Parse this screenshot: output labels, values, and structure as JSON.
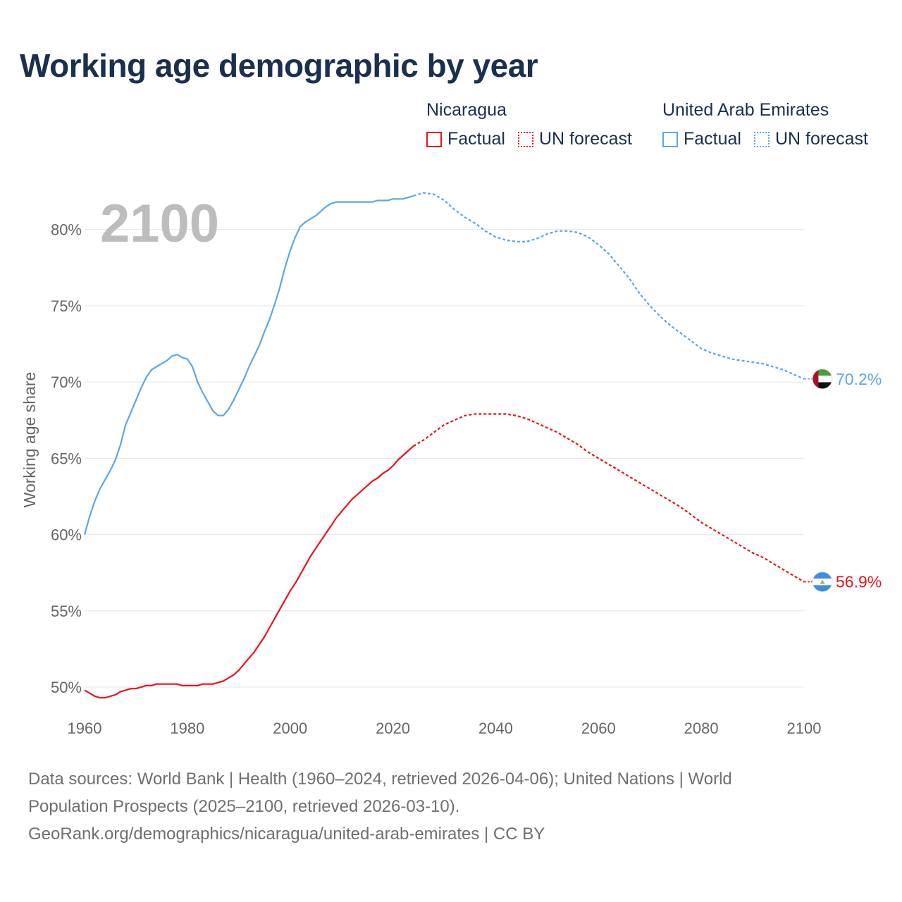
{
  "title": "Working age demographic by year",
  "legend": {
    "nicaragua": {
      "name": "Nicaragua",
      "factual": "Factual",
      "forecast": "UN forecast"
    },
    "uae": {
      "name": "United Arab Emirates",
      "factual": "Factual",
      "forecast": "UN forecast"
    }
  },
  "colors": {
    "nicaragua": "#e8141b",
    "uae": "#5aa7e3",
    "grid": "#e6e6e6",
    "text": "#1b2f4e",
    "muted": "#666666"
  },
  "footer": {
    "line1": "Data sources: World Bank | Health (1960–2024, retrieved 2026-04-06); United Nations | World",
    "line2": "Population Prospects (2025–2100, retrieved 2026-03-10).",
    "line3": "GeoRank.org/demographics/nicaragua/united-arab-emirates | CC BY"
  },
  "chart_data": {
    "type": "line",
    "title": "Working age demographic by year",
    "ylabel": "Working age share",
    "xlabel": "",
    "year_display": "2100",
    "xlim": [
      1960,
      2100
    ],
    "ylim": [
      47,
      84
    ],
    "x_ticks": [
      1960,
      1980,
      2000,
      2020,
      2040,
      2060,
      2080,
      2100
    ],
    "x_tick_labels": [
      "1960",
      "1980",
      "2000",
      "2020",
      "2040",
      "2060",
      "2080",
      "2100"
    ],
    "y_ticks": [
      50,
      55,
      60,
      65,
      70,
      75,
      80
    ],
    "y_tick_labels": [
      "50%",
      "55%",
      "60%",
      "65%",
      "70%",
      "75%",
      "80%"
    ],
    "forecast_start": 2024,
    "series": [
      {
        "name": "Nicaragua",
        "color": "#e8141b",
        "end_label": "56.9%",
        "flag": "nicaragua-flag",
        "points": [
          [
            1960,
            49.8
          ],
          [
            1961,
            49.6
          ],
          [
            1962,
            49.4
          ],
          [
            1963,
            49.3
          ],
          [
            1964,
            49.3
          ],
          [
            1965,
            49.4
          ],
          [
            1966,
            49.5
          ],
          [
            1967,
            49.7
          ],
          [
            1968,
            49.8
          ],
          [
            1969,
            49.9
          ],
          [
            1970,
            49.9
          ],
          [
            1971,
            50.0
          ],
          [
            1972,
            50.1
          ],
          [
            1973,
            50.1
          ],
          [
            1974,
            50.2
          ],
          [
            1975,
            50.2
          ],
          [
            1976,
            50.2
          ],
          [
            1977,
            50.2
          ],
          [
            1978,
            50.2
          ],
          [
            1979,
            50.1
          ],
          [
            1980,
            50.1
          ],
          [
            1981,
            50.1
          ],
          [
            1982,
            50.1
          ],
          [
            1983,
            50.2
          ],
          [
            1984,
            50.2
          ],
          [
            1985,
            50.2
          ],
          [
            1986,
            50.3
          ],
          [
            1987,
            50.4
          ],
          [
            1988,
            50.6
          ],
          [
            1989,
            50.8
          ],
          [
            1990,
            51.1
          ],
          [
            1991,
            51.5
          ],
          [
            1992,
            51.9
          ],
          [
            1993,
            52.3
          ],
          [
            1994,
            52.8
          ],
          [
            1995,
            53.3
          ],
          [
            1996,
            53.9
          ],
          [
            1997,
            54.5
          ],
          [
            1998,
            55.1
          ],
          [
            1999,
            55.7
          ],
          [
            2000,
            56.3
          ],
          [
            2001,
            56.8
          ],
          [
            2002,
            57.4
          ],
          [
            2003,
            58.0
          ],
          [
            2004,
            58.6
          ],
          [
            2005,
            59.1
          ],
          [
            2006,
            59.6
          ],
          [
            2007,
            60.1
          ],
          [
            2008,
            60.6
          ],
          [
            2009,
            61.1
          ],
          [
            2010,
            61.5
          ],
          [
            2011,
            61.9
          ],
          [
            2012,
            62.3
          ],
          [
            2013,
            62.6
          ],
          [
            2014,
            62.9
          ],
          [
            2015,
            63.2
          ],
          [
            2016,
            63.5
          ],
          [
            2017,
            63.7
          ],
          [
            2018,
            64.0
          ],
          [
            2019,
            64.2
          ],
          [
            2020,
            64.5
          ],
          [
            2021,
            64.9
          ],
          [
            2022,
            65.2
          ],
          [
            2023,
            65.5
          ],
          [
            2024,
            65.8
          ],
          [
            2026,
            66.2
          ],
          [
            2028,
            66.7
          ],
          [
            2030,
            67.2
          ],
          [
            2032,
            67.5
          ],
          [
            2034,
            67.8
          ],
          [
            2036,
            67.9
          ],
          [
            2038,
            67.9
          ],
          [
            2040,
            67.9
          ],
          [
            2042,
            67.9
          ],
          [
            2044,
            67.8
          ],
          [
            2046,
            67.6
          ],
          [
            2048,
            67.3
          ],
          [
            2050,
            67.0
          ],
          [
            2052,
            66.7
          ],
          [
            2054,
            66.3
          ],
          [
            2056,
            65.9
          ],
          [
            2058,
            65.4
          ],
          [
            2060,
            65.0
          ],
          [
            2062,
            64.6
          ],
          [
            2064,
            64.2
          ],
          [
            2066,
            63.8
          ],
          [
            2068,
            63.4
          ],
          [
            2070,
            63.0
          ],
          [
            2072,
            62.6
          ],
          [
            2074,
            62.2
          ],
          [
            2076,
            61.8
          ],
          [
            2078,
            61.3
          ],
          [
            2080,
            60.8
          ],
          [
            2082,
            60.4
          ],
          [
            2084,
            60.0
          ],
          [
            2086,
            59.6
          ],
          [
            2088,
            59.2
          ],
          [
            2090,
            58.8
          ],
          [
            2092,
            58.5
          ],
          [
            2094,
            58.1
          ],
          [
            2096,
            57.7
          ],
          [
            2098,
            57.3
          ],
          [
            2100,
            56.9
          ]
        ]
      },
      {
        "name": "United Arab Emirates",
        "color": "#5aa7e3",
        "end_label": "70.2%",
        "flag": "uae-flag",
        "points": [
          [
            1960,
            60.0
          ],
          [
            1961,
            61.2
          ],
          [
            1962,
            62.2
          ],
          [
            1963,
            63.0
          ],
          [
            1964,
            63.6
          ],
          [
            1965,
            64.2
          ],
          [
            1966,
            64.9
          ],
          [
            1967,
            65.9
          ],
          [
            1968,
            67.2
          ],
          [
            1969,
            68.0
          ],
          [
            1970,
            68.8
          ],
          [
            1971,
            69.6
          ],
          [
            1972,
            70.3
          ],
          [
            1973,
            70.8
          ],
          [
            1974,
            71.0
          ],
          [
            1975,
            71.2
          ],
          [
            1976,
            71.4
          ],
          [
            1977,
            71.7
          ],
          [
            1978,
            71.8
          ],
          [
            1979,
            71.6
          ],
          [
            1980,
            71.5
          ],
          [
            1981,
            71.0
          ],
          [
            1982,
            70.0
          ],
          [
            1983,
            69.3
          ],
          [
            1984,
            68.7
          ],
          [
            1985,
            68.1
          ],
          [
            1986,
            67.8
          ],
          [
            1987,
            67.8
          ],
          [
            1988,
            68.2
          ],
          [
            1989,
            68.8
          ],
          [
            1990,
            69.5
          ],
          [
            1991,
            70.2
          ],
          [
            1992,
            71.0
          ],
          [
            1993,
            71.7
          ],
          [
            1994,
            72.4
          ],
          [
            1995,
            73.3
          ],
          [
            1996,
            74.1
          ],
          [
            1997,
            75.1
          ],
          [
            1998,
            76.2
          ],
          [
            1999,
            77.5
          ],
          [
            2000,
            78.6
          ],
          [
            2001,
            79.5
          ],
          [
            2002,
            80.2
          ],
          [
            2003,
            80.5
          ],
          [
            2004,
            80.7
          ],
          [
            2005,
            80.9
          ],
          [
            2006,
            81.2
          ],
          [
            2007,
            81.5
          ],
          [
            2008,
            81.7
          ],
          [
            2009,
            81.8
          ],
          [
            2010,
            81.8
          ],
          [
            2011,
            81.8
          ],
          [
            2012,
            81.8
          ],
          [
            2013,
            81.8
          ],
          [
            2014,
            81.8
          ],
          [
            2015,
            81.8
          ],
          [
            2016,
            81.8
          ],
          [
            2017,
            81.9
          ],
          [
            2018,
            81.9
          ],
          [
            2019,
            81.9
          ],
          [
            2020,
            82.0
          ],
          [
            2021,
            82.0
          ],
          [
            2022,
            82.0
          ],
          [
            2023,
            82.1
          ],
          [
            2024,
            82.2
          ],
          [
            2026,
            82.4
          ],
          [
            2028,
            82.3
          ],
          [
            2030,
            81.9
          ],
          [
            2032,
            81.3
          ],
          [
            2034,
            80.8
          ],
          [
            2036,
            80.4
          ],
          [
            2038,
            79.9
          ],
          [
            2040,
            79.5
          ],
          [
            2042,
            79.3
          ],
          [
            2044,
            79.2
          ],
          [
            2046,
            79.2
          ],
          [
            2048,
            79.4
          ],
          [
            2050,
            79.7
          ],
          [
            2052,
            79.9
          ],
          [
            2054,
            79.9
          ],
          [
            2056,
            79.8
          ],
          [
            2058,
            79.5
          ],
          [
            2060,
            79.0
          ],
          [
            2062,
            78.4
          ],
          [
            2064,
            77.6
          ],
          [
            2066,
            76.8
          ],
          [
            2068,
            75.8
          ],
          [
            2070,
            75.0
          ],
          [
            2072,
            74.3
          ],
          [
            2074,
            73.7
          ],
          [
            2076,
            73.2
          ],
          [
            2078,
            72.7
          ],
          [
            2080,
            72.2
          ],
          [
            2082,
            71.9
          ],
          [
            2084,
            71.7
          ],
          [
            2086,
            71.5
          ],
          [
            2088,
            71.4
          ],
          [
            2090,
            71.3
          ],
          [
            2092,
            71.2
          ],
          [
            2094,
            71.0
          ],
          [
            2096,
            70.8
          ],
          [
            2098,
            70.5
          ],
          [
            2100,
            70.2
          ]
        ]
      }
    ]
  }
}
